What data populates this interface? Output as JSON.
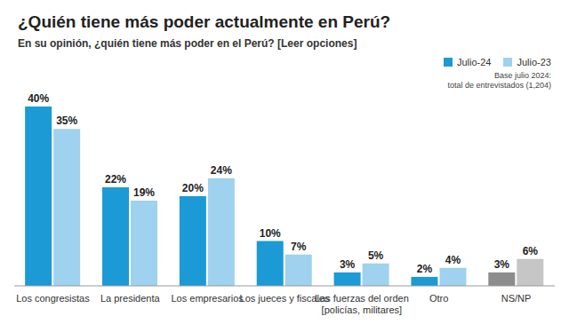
{
  "chart_data": {
    "type": "bar",
    "title": "¿Quién tiene más poder actualmente en Perú?",
    "subtitle": "En su opinión, ¿quién tiene más poder en el Perú? [Leer opciones]",
    "annotations": [
      "Base julio 2024:",
      "total de entrevistados (1,204)"
    ],
    "categories": [
      "Los congresistas",
      "La presidenta",
      "Los empresarios",
      "Los jueces y fiscales",
      "Las fuerzas del orden [policías, militares]",
      "Otro",
      "NS/NP"
    ],
    "series": [
      {
        "name": "Julio-24",
        "color": "#1b9ad6",
        "colors": [
          "#1b9ad6",
          "#1b9ad6",
          "#1b9ad6",
          "#1b9ad6",
          "#1b9ad6",
          "#1b9ad6",
          "#8c8c8c"
        ],
        "values": [
          40,
          22,
          20,
          10,
          3,
          2,
          3
        ],
        "value_labels": [
          "40%",
          "22%",
          "20%",
          "10%",
          "3%",
          "2%",
          "3%"
        ]
      },
      {
        "name": "Julio-23",
        "color": "#9ed2ee",
        "colors": [
          "#9ed2ee",
          "#9ed2ee",
          "#9ed2ee",
          "#9ed2ee",
          "#9ed2ee",
          "#9ed2ee",
          "#c6c6c6"
        ],
        "values": [
          35,
          19,
          24,
          7,
          5,
          4,
          6
        ],
        "value_labels": [
          "35%",
          "19%",
          "24%",
          "7%",
          "5%",
          "4%",
          "6%"
        ]
      }
    ],
    "data_labels": true,
    "tick_labels": "x",
    "legend": "top-right",
    "grid": false
  }
}
